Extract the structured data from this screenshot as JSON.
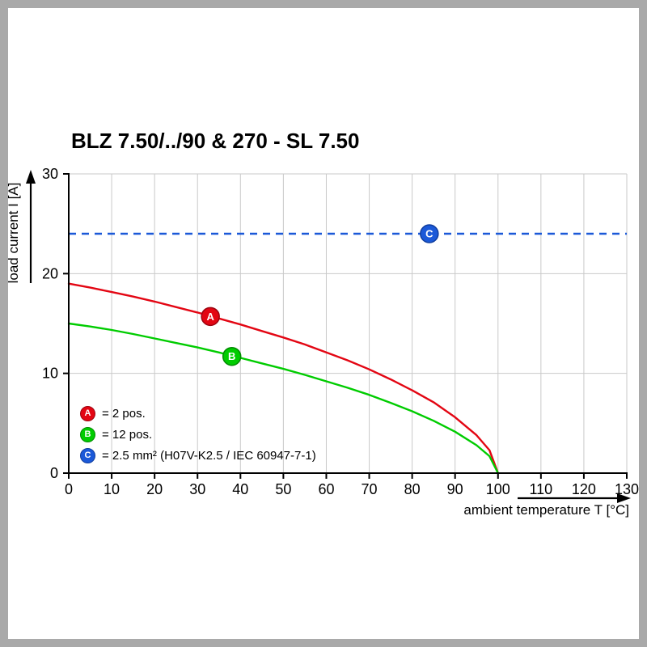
{
  "title": "BLZ 7.50/../90 & 270 - SL 7.50",
  "chart_data": {
    "type": "line",
    "title": "BLZ 7.50/../90 & 270 - SL 7.50",
    "xlabel": "ambient temperature T [°C]",
    "ylabel": "load current I [A]",
    "xlim": [
      0,
      130
    ],
    "ylim": [
      0,
      30
    ],
    "xticks": [
      0,
      10,
      20,
      30,
      40,
      50,
      60,
      70,
      80,
      90,
      100,
      110,
      120,
      130
    ],
    "yticks": [
      0,
      10,
      20,
      30
    ],
    "grid": true,
    "grid_color": "#c9c9c9",
    "axis_color": "#000000",
    "legend_position": "bottom-left-inside",
    "series": [
      {
        "id": "A",
        "name": "2 pos.",
        "type": "curve",
        "color": "#e30613",
        "edge_color": "#9b0410",
        "marker_at": [
          33,
          15.7
        ],
        "points": [
          [
            0,
            19.0
          ],
          [
            5,
            18.6
          ],
          [
            10,
            18.15
          ],
          [
            15,
            17.7
          ],
          [
            20,
            17.2
          ],
          [
            25,
            16.65
          ],
          [
            30,
            16.1
          ],
          [
            35,
            15.5
          ],
          [
            40,
            14.9
          ],
          [
            45,
            14.25
          ],
          [
            50,
            13.6
          ],
          [
            55,
            12.9
          ],
          [
            60,
            12.1
          ],
          [
            65,
            11.3
          ],
          [
            70,
            10.4
          ],
          [
            75,
            9.4
          ],
          [
            80,
            8.3
          ],
          [
            85,
            7.1
          ],
          [
            90,
            5.6
          ],
          [
            95,
            3.8
          ],
          [
            98,
            2.3
          ],
          [
            100,
            0
          ]
        ]
      },
      {
        "id": "B",
        "name": "12 pos.",
        "type": "curve",
        "color": "#00cc00",
        "edge_color": "#008a00",
        "marker_at": [
          38,
          11.7
        ],
        "points": [
          [
            0,
            15.0
          ],
          [
            5,
            14.7
          ],
          [
            10,
            14.35
          ],
          [
            15,
            13.95
          ],
          [
            20,
            13.5
          ],
          [
            25,
            13.05
          ],
          [
            30,
            12.6
          ],
          [
            35,
            12.1
          ],
          [
            40,
            11.55
          ],
          [
            45,
            11.0
          ],
          [
            50,
            10.45
          ],
          [
            55,
            9.85
          ],
          [
            60,
            9.2
          ],
          [
            65,
            8.55
          ],
          [
            70,
            7.85
          ],
          [
            75,
            7.05
          ],
          [
            80,
            6.2
          ],
          [
            85,
            5.25
          ],
          [
            90,
            4.15
          ],
          [
            95,
            2.8
          ],
          [
            98,
            1.7
          ],
          [
            100,
            0
          ]
        ]
      },
      {
        "id": "C",
        "name": "2.5 mm² (H07V-K2.5 / IEC 60947-7-1)",
        "type": "hline",
        "color": "#1b59d8",
        "edge_color": "#0f3d9e",
        "dash": true,
        "y": 24,
        "x_range": [
          0,
          130
        ],
        "marker_at": [
          84,
          24
        ]
      }
    ]
  },
  "legend": {
    "items": [
      {
        "id": "A",
        "label": "= 2 pos.",
        "color": "#e30613",
        "edge": "#9b0410"
      },
      {
        "id": "B",
        "label": "= 12 pos.",
        "color": "#00cc00",
        "edge": "#008a00"
      },
      {
        "id": "C",
        "label": "= 2.5 mm² (H07V-K2.5 / IEC 60947-7-1)",
        "color": "#1b59d8",
        "edge": "#0f3d9e"
      }
    ]
  }
}
